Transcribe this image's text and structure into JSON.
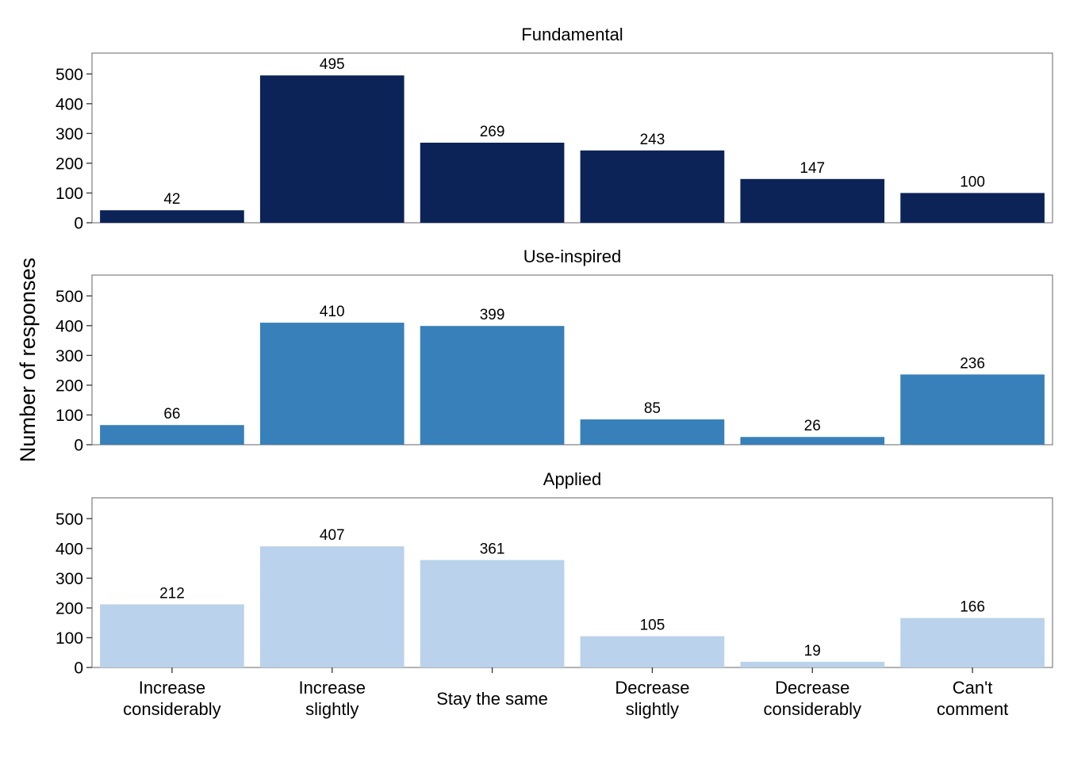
{
  "chart_data": {
    "type": "bar",
    "ylabel": "Number of responses",
    "xlabel": "",
    "ylim": [
      0,
      570
    ],
    "yticks": [
      0,
      100,
      200,
      300,
      400,
      500
    ],
    "categories": [
      [
        "Increase",
        "considerably"
      ],
      [
        "Increase",
        "slightly"
      ],
      [
        "Stay the same"
      ],
      [
        "Decrease",
        "slightly"
      ],
      [
        "Decrease",
        "considerably"
      ],
      [
        "Can't",
        "comment"
      ]
    ],
    "grid": false,
    "legend": "none",
    "panels": [
      {
        "title": "Fundamental",
        "color": "#0C2358",
        "values": [
          42,
          495,
          269,
          243,
          147,
          100
        ]
      },
      {
        "title": "Use-inspired",
        "color": "#3880BA",
        "values": [
          66,
          410,
          399,
          85,
          26,
          236
        ]
      },
      {
        "title": "Applied",
        "color": "#BAD2EB",
        "values": [
          212,
          407,
          361,
          105,
          19,
          166
        ]
      }
    ]
  }
}
